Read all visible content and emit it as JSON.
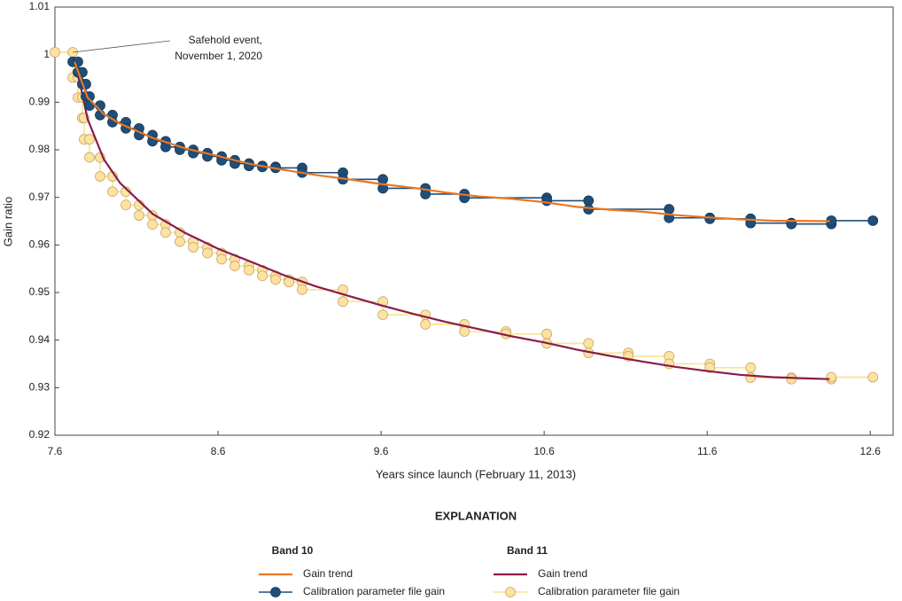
{
  "chart_data": {
    "type": "line",
    "xlabel": "Years since launch (February 11, 2013)",
    "ylabel": "Gain ratio",
    "xlim": [
      7.6,
      12.74
    ],
    "ylim": [
      0.92,
      1.01
    ],
    "xticks": [
      7.6,
      8.6,
      9.6,
      10.6,
      11.6,
      12.6
    ],
    "yticks": [
      0.92,
      0.93,
      0.94,
      0.95,
      0.96,
      0.97,
      0.98,
      0.99,
      1,
      1.01
    ],
    "grid": false,
    "annotation": {
      "lines": [
        "Safehold event,",
        "November 1, 2020"
      ],
      "x": 7.709,
      "y": 1.0005
    },
    "legend_title": "EXPLANATION",
    "legend_groups": [
      "Band 10",
      "Band 11"
    ],
    "series": [
      {
        "name": "Gain trend",
        "color": "#e87722",
        "marker": false,
        "x": [
          7.72,
          7.8,
          7.9,
          8.0,
          8.2,
          8.4,
          8.6,
          8.8,
          9.0,
          9.2,
          9.4,
          9.6,
          9.8,
          10.0,
          10.2,
          10.4,
          10.6,
          10.8,
          11.0,
          11.2,
          11.4,
          11.6,
          11.8,
          12.0,
          12.35
        ],
        "values": [
          0.9985,
          0.991,
          0.9875,
          0.9855,
          0.9825,
          0.9803,
          0.9787,
          0.977,
          0.9758,
          0.9747,
          0.9738,
          0.9728,
          0.972,
          0.971,
          0.9702,
          0.9697,
          0.969,
          0.968,
          0.9674,
          0.967,
          0.9663,
          0.9658,
          0.9654,
          0.9651,
          0.965
        ]
      },
      {
        "name": "Calibration parameter file gain",
        "color": "#1f4e79",
        "marker": true,
        "marker_fill": "#1f4e79",
        "marker_stroke": "#16395a",
        "x": [
          7.709,
          7.741,
          7.741,
          7.768,
          7.768,
          7.79,
          7.79,
          7.812,
          7.812,
          7.877,
          7.877,
          7.953,
          7.953,
          8.035,
          8.035,
          8.116,
          8.116,
          8.198,
          8.198,
          8.279,
          8.279,
          8.366,
          8.366,
          8.448,
          8.448,
          8.535,
          8.535,
          8.622,
          8.622,
          8.703,
          8.703,
          8.79,
          8.79,
          8.872,
          8.872,
          8.953,
          8.953,
          9.116,
          9.116,
          9.366,
          9.366,
          9.611,
          9.611,
          9.872,
          9.872,
          10.111,
          10.111,
          10.616,
          10.616,
          10.872,
          10.872,
          11.366,
          11.366,
          11.616,
          11.616,
          11.866,
          11.866,
          12.116,
          12.116,
          12.361,
          12.361,
          12.616
        ],
        "values": [
          0.9985,
          0.9985,
          0.9963,
          0.9963,
          0.9938,
          0.9938,
          0.9912,
          0.9912,
          0.9893,
          0.9893,
          0.9873,
          0.9873,
          0.9858,
          0.9858,
          0.9845,
          0.9845,
          0.9831,
          0.9831,
          0.9818,
          0.9818,
          0.9806,
          0.9806,
          0.98,
          0.98,
          0.9793,
          0.9793,
          0.9786,
          0.9786,
          0.9778,
          0.9778,
          0.9771,
          0.9771,
          0.9766,
          0.9766,
          0.9764,
          0.9764,
          0.9762,
          0.9762,
          0.9752,
          0.9752,
          0.9738,
          0.9738,
          0.9719,
          0.9719,
          0.9707,
          0.9707,
          0.9699,
          0.9699,
          0.9693,
          0.9693,
          0.9675,
          0.9675,
          0.9657,
          0.9657,
          0.9655,
          0.9655,
          0.9646,
          0.9646,
          0.9644,
          0.9644,
          0.9651,
          0.9651
        ]
      },
      {
        "name": "Gain trend",
        "color": "#8b1a4a",
        "marker": false,
        "x": [
          7.72,
          7.76,
          7.8,
          7.9,
          8.0,
          8.2,
          8.4,
          8.6,
          8.8,
          9.0,
          9.2,
          9.4,
          9.6,
          9.8,
          10.0,
          10.2,
          10.4,
          10.6,
          10.8,
          11.0,
          11.2,
          11.4,
          11.6,
          11.8,
          12.0,
          12.35
        ],
        "values": [
          0.9985,
          0.993,
          0.9865,
          0.978,
          0.973,
          0.9665,
          0.9625,
          0.9592,
          0.9565,
          0.9537,
          0.9513,
          0.9493,
          0.9473,
          0.9455,
          0.9438,
          0.9423,
          0.9408,
          0.9395,
          0.938,
          0.9367,
          0.9355,
          0.9344,
          0.9335,
          0.9327,
          0.9322,
          0.9318
        ]
      },
      {
        "name": "Calibration parameter file gain",
        "color": "#f7e48a",
        "marker": true,
        "marker_fill": "#fde2a0",
        "marker_stroke": "#c9a66b",
        "x": [
          7.6,
          7.709,
          7.709,
          7.741,
          7.741,
          7.768,
          7.768,
          7.779,
          7.779,
          7.812,
          7.812,
          7.877,
          7.877,
          7.953,
          7.953,
          8.035,
          8.035,
          8.116,
          8.116,
          8.198,
          8.198,
          8.279,
          8.279,
          8.366,
          8.366,
          8.448,
          8.448,
          8.535,
          8.535,
          8.622,
          8.622,
          8.703,
          8.703,
          8.79,
          8.79,
          8.872,
          8.872,
          8.953,
          8.953,
          9.035,
          9.035,
          9.116,
          9.116,
          9.366,
          9.366,
          9.611,
          9.611,
          9.872,
          9.872,
          10.111,
          10.111,
          10.366,
          10.366,
          10.616,
          10.616,
          10.872,
          10.872,
          11.116,
          11.116,
          11.366,
          11.366,
          11.616,
          11.616,
          11.866,
          11.866,
          12.116,
          12.116,
          12.361,
          12.361,
          12.616
        ],
        "values": [
          1.0005,
          1.0005,
          0.9952,
          0.9952,
          0.991,
          0.991,
          0.9867,
          0.9867,
          0.9822,
          0.9822,
          0.9784,
          0.9784,
          0.9744,
          0.9744,
          0.9712,
          0.9712,
          0.9684,
          0.9684,
          0.9662,
          0.9662,
          0.9643,
          0.9643,
          0.9626,
          0.9626,
          0.9607,
          0.9607,
          0.9595,
          0.9595,
          0.9583,
          0.9583,
          0.957,
          0.957,
          0.9556,
          0.9556,
          0.9547,
          0.9547,
          0.9535,
          0.9535,
          0.9527,
          0.9527,
          0.9522,
          0.9522,
          0.9506,
          0.9506,
          0.9481,
          0.9481,
          0.9453,
          0.9453,
          0.9433,
          0.9433,
          0.9418,
          0.9418,
          0.9413,
          0.9413,
          0.9393,
          0.9393,
          0.9373,
          0.9373,
          0.9366,
          0.9366,
          0.935,
          0.935,
          0.9342,
          0.9342,
          0.9321,
          0.9321,
          0.9318,
          0.9318,
          0.9322,
          0.9322
        ]
      }
    ]
  }
}
